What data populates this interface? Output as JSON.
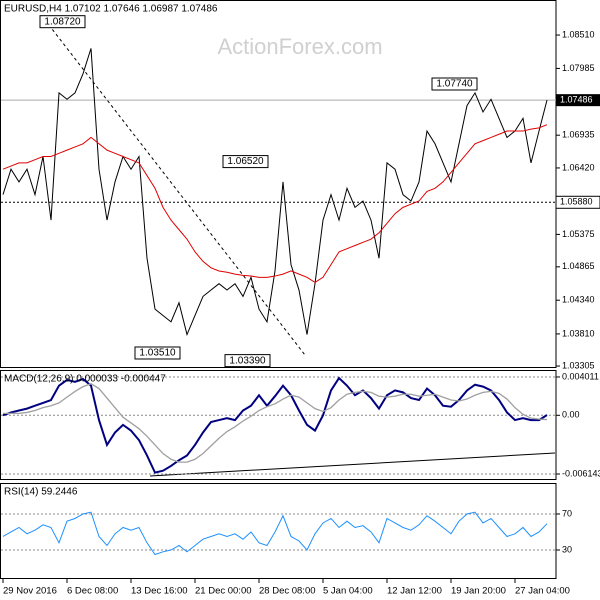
{
  "chart_data": [
    {
      "type": "line",
      "title": "EURUSD,H4 1.07102 1.07646 1.06987 1.07486",
      "watermark": "ActionForex.com",
      "categories": [
        "29 Nov 2016",
        null,
        null,
        null,
        null,
        null,
        null,
        null,
        "6 Dec 08:00",
        null,
        null,
        null,
        null,
        null,
        null,
        null,
        "13 Dec 16:00",
        null,
        null,
        null,
        null,
        null,
        null,
        null,
        "21 Dec 00:00",
        null,
        null,
        null,
        null,
        null,
        null,
        null,
        "28 Dec 08:00",
        null,
        null,
        null,
        null,
        null,
        null,
        null,
        "5 Jan 04:00",
        null,
        null,
        null,
        null,
        null,
        null,
        null,
        "12 Jan 12:00",
        null,
        null,
        null,
        null,
        null,
        null,
        null,
        "19 Jan 20:00",
        null,
        null,
        null,
        null,
        null,
        null,
        null,
        "27 Jan 04:00",
        null,
        null,
        null,
        null
      ],
      "series": [
        {
          "color": "#000000",
          "values": [
            1.06,
            1.064,
            1.062,
            1.064,
            1.06,
            1.066,
            1.056,
            1.076,
            1.075,
            1.076,
            1.079,
            1.083,
            1.064,
            1.056,
            1.062,
            1.066,
            1.064,
            1.066,
            1.05,
            1.042,
            1.041,
            1.04,
            1.043,
            1.038,
            1.041,
            1.044,
            1.045,
            1.046,
            1.045,
            1.046,
            1.044,
            1.047,
            1.042,
            1.04,
            1.048,
            1.062,
            1.049,
            1.045,
            1.038,
            1.046,
            1.056,
            1.06,
            1.056,
            1.061,
            1.058,
            1.059,
            1.056,
            1.05,
            1.065,
            1.064,
            1.06,
            1.059,
            1.062,
            1.07,
            1.068,
            1.065,
            1.062,
            1.068,
            1.074,
            1.076,
            1.073,
            1.075,
            1.072,
            1.069,
            1.07,
            1.072,
            1.065,
            1.07,
            1.07486
          ]
        },
        {
          "color": "#e00000",
          "values": [
            1.064,
            1.0645,
            1.065,
            1.065,
            1.0655,
            1.066,
            1.066,
            1.0665,
            1.067,
            1.0675,
            1.068,
            1.069,
            1.068,
            1.067,
            1.0665,
            1.066,
            1.0655,
            1.065,
            1.063,
            1.061,
            1.058,
            1.056,
            1.0545,
            1.053,
            1.051,
            1.0495,
            1.0485,
            1.048,
            1.0478,
            1.0475,
            1.0473,
            1.0472,
            1.047,
            1.047,
            1.0472,
            1.0475,
            1.048,
            1.0475,
            1.047,
            1.0462,
            1.047,
            1.049,
            1.051,
            1.0515,
            1.052,
            1.0525,
            1.053,
            1.054,
            1.0555,
            1.057,
            1.058,
            1.0585,
            1.059,
            1.0605,
            1.061,
            1.062,
            1.0635,
            1.065,
            1.0665,
            1.068,
            1.0685,
            1.069,
            1.0695,
            1.07,
            1.07,
            1.07,
            1.0703,
            1.0705,
            1.071
          ]
        }
      ],
      "ylim": [
        1.03274,
        1.09061
      ],
      "yticks": [
        {
          "value": 1.0851,
          "label": "1.08510"
        },
        1.07985,
        {
          "value": 1.06935,
          "label": "1.06935"
        },
        {
          "value": 1.0642,
          "label": "1.06420"
        },
        1.05375,
        1.04865,
        {
          "value": 1.0434,
          "label": "1.04340"
        },
        {
          "value": 1.0381,
          "label": "1.03810"
        },
        1.03305
      ],
      "last_price": {
        "value": 1.07486,
        "label": "1.07486"
      },
      "level": {
        "value": 1.0588,
        "label": "1.05880"
      },
      "annotations": [
        {
          "value": 1.0872,
          "label": "1.08720"
        },
        {
          "value": 1.0652,
          "label": "1.06520"
        },
        {
          "value": 1.0774,
          "label": "1.07740"
        },
        {
          "value": 1.0351,
          "label": "1.03510"
        },
        {
          "value": 1.0339,
          "label": "1.03390"
        }
      ]
    },
    {
      "type": "line",
      "title": "MACD(12,26,9) 0.000033 -0.000447",
      "series": [
        {
          "color": "#000080",
          "values": [
            0,
            0.0003,
            0.0005,
            0.0007,
            0.001,
            0.0013,
            0.0016,
            0.0031,
            0.0037,
            0.0035,
            0.0038,
            0.0031,
            -0.0005,
            -0.0031,
            -0.0018,
            -0.001,
            -0.0016,
            -0.0026,
            -0.0042,
            -0.006,
            -0.0058,
            -0.0053,
            -0.0047,
            -0.0042,
            -0.0031,
            -0.0018,
            -0.0007,
            -0.0005,
            -0.0003,
            -0.0005,
            0.0005,
            0.001,
            0.0021,
            0.001,
            0.002,
            0.0031,
            0.0021,
            0.0005,
            -0.001,
            -0.0016,
            0,
            0.0026,
            0.0039,
            0.0031,
            0.0021,
            0.0026,
            0.0018,
            0.0007,
            0.0021,
            0.0026,
            0.0024,
            0.0018,
            0.0016,
            0.0028,
            0.0021,
            0.001,
            0.0009,
            0.0016,
            0.0026,
            0.0032,
            0.003,
            0.0026,
            0.0016,
            0.0003,
            -0.0005,
            -0.0003,
            -0.0005,
            -0.0005,
            3.3e-05
          ]
        },
        {
          "color": "#a0a0a0",
          "values": [
            0.0002,
            0.0002,
            0.0002,
            0.0003,
            0.0005,
            0.0008,
            0.001,
            0.0013,
            0.0019,
            0.0025,
            0.003,
            0.0033,
            0.0028,
            0.0018,
            0.0008,
            -0.0002,
            -0.0008,
            -0.0014,
            -0.0022,
            -0.0031,
            -0.004,
            -0.0046,
            -0.0049,
            -0.0049,
            -0.0046,
            -0.004,
            -0.0032,
            -0.0024,
            -0.0017,
            -0.0012,
            -0.0006,
            -0.0001,
            0.0005,
            0.0009,
            0.0012,
            0.0017,
            0.0021,
            0.0019,
            0.0013,
            0.0007,
            0.0004,
            0.0008,
            0.0016,
            0.0022,
            0.0024,
            0.0025,
            0.0024,
            0.002,
            0.0019,
            0.002,
            0.0022,
            0.0022,
            0.002,
            0.0021,
            0.0022,
            0.0019,
            0.0016,
            0.0015,
            0.0017,
            0.0021,
            0.0024,
            0.0025,
            0.0023,
            0.0017,
            0.0008,
            0.0001,
            -0.0003,
            -0.0004,
            -0.000447
          ]
        }
      ],
      "ylim": [
        -0.00677,
        0.00474
      ],
      "yticks": [
        0.004011,
        {
          "value": 0,
          "label": "0.00"
        },
        -0.006143
      ]
    },
    {
      "type": "line",
      "title": "RSI(14) 59.2446",
      "series": [
        {
          "color": "#1e90ff",
          "values": [
            45,
            50,
            55,
            48,
            52,
            58,
            55,
            38,
            62,
            65,
            70,
            72,
            45,
            35,
            48,
            55,
            52,
            55,
            38,
            25,
            28,
            30,
            35,
            28,
            35,
            42,
            45,
            48,
            45,
            48,
            42,
            50,
            38,
            35,
            50,
            68,
            45,
            40,
            30,
            48,
            60,
            65,
            55,
            62,
            55,
            57,
            50,
            38,
            65,
            60,
            55,
            52,
            58,
            68,
            62,
            55,
            48,
            62,
            70,
            72,
            60,
            65,
            55,
            45,
            48,
            55,
            45,
            50,
            59.2446
          ]
        }
      ],
      "ylim": [
        -2.2,
        104.4
      ],
      "yticks": [
        70,
        30
      ]
    }
  ]
}
